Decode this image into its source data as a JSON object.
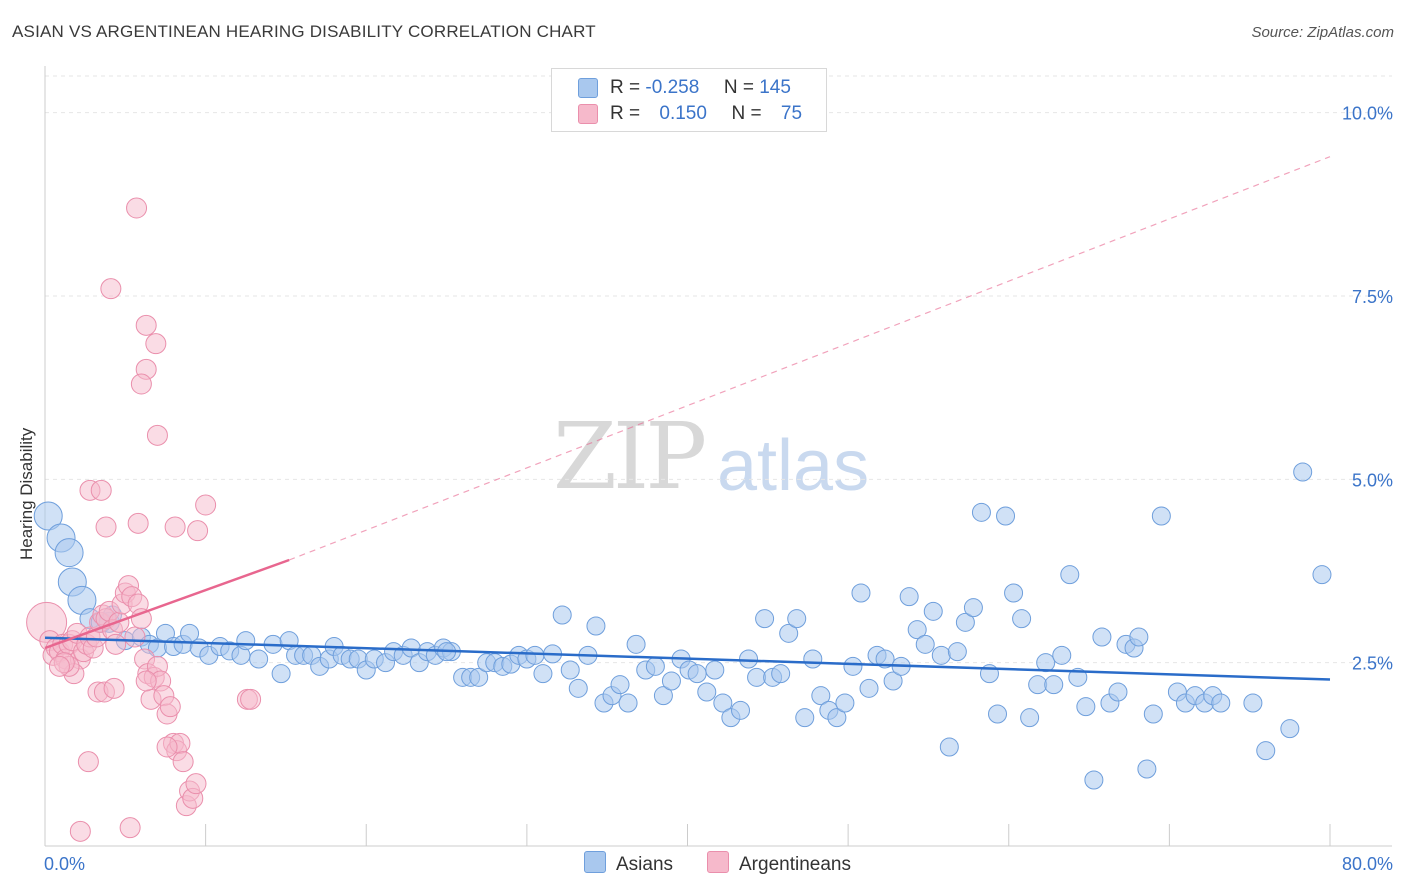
{
  "title": "ASIAN VS ARGENTINEAN HEARING DISABILITY CORRELATION CHART",
  "source": "Source: ZipAtlas.com",
  "watermark": {
    "zip": "ZIP",
    "atlas": "atlas"
  },
  "legend": {
    "rows": [
      {
        "r_label": "R =",
        "r_value": "-0.258",
        "n_label": "N =",
        "n_value": "145"
      },
      {
        "r_label": "R =",
        "r_value": "0.150",
        "n_label": "N =",
        "n_value": "75"
      }
    ]
  },
  "bottom_legend": [
    {
      "label": "Asians"
    },
    {
      "label": "Argentineans"
    }
  ],
  "colors": {
    "asian_fill": "#a9c8ee",
    "asian_stroke": "#6f9fdc",
    "asian_line": "#2a6cc9",
    "arg_fill": "#f6b9cb",
    "arg_stroke": "#ea8fac",
    "arg_line": "#e8668f",
    "tick_text": "#3b74c9",
    "grid": "#e6e6e6"
  },
  "chart_data": {
    "type": "scatter",
    "title": "ASIAN VS ARGENTINEAN HEARING DISABILITY CORRELATION CHART",
    "xlabel": "",
    "ylabel": "Hearing Disability",
    "xlim": [
      0,
      80
    ],
    "ylim": [
      0,
      10.5
    ],
    "x_tick_labels": [
      "0.0%",
      "80.0%"
    ],
    "y_ticks": [
      2.5,
      5.0,
      7.5,
      10.0
    ],
    "y_tick_labels": [
      "2.5%",
      "5.0%",
      "7.5%",
      "10.0%"
    ],
    "grid": true,
    "legend_position": "top-center",
    "series": [
      {
        "name": "Asians",
        "r": -0.258,
        "n": 145,
        "trend": {
          "x": [
            0,
            80
          ],
          "y": [
            2.84,
            2.27
          ],
          "style": "solid"
        },
        "points": [
          [
            0.2,
            4.5,
            4
          ],
          [
            1.0,
            4.2,
            4
          ],
          [
            1.5,
            4.0,
            4
          ],
          [
            1.7,
            3.6,
            4
          ],
          [
            2.3,
            3.35,
            4
          ],
          [
            2.8,
            3.1,
            3
          ],
          [
            3.5,
            3.05,
            3
          ],
          [
            4.0,
            3.05,
            3
          ],
          [
            4.2,
            3.15,
            2
          ],
          [
            5.0,
            2.8,
            2
          ],
          [
            6.0,
            2.85,
            2
          ],
          [
            6.5,
            2.75,
            2
          ],
          [
            7.0,
            2.7,
            2
          ],
          [
            7.5,
            2.9,
            2
          ],
          [
            8.0,
            2.72,
            2
          ],
          [
            8.6,
            2.75,
            2
          ],
          [
            9.0,
            2.9,
            2
          ],
          [
            9.6,
            2.7,
            2
          ],
          [
            10.2,
            2.6,
            2
          ],
          [
            10.9,
            2.72,
            2
          ],
          [
            11.5,
            2.66,
            2
          ],
          [
            12.2,
            2.6,
            2
          ],
          [
            12.5,
            2.8,
            2
          ],
          [
            13.3,
            2.55,
            2
          ],
          [
            14.2,
            2.75,
            2
          ],
          [
            14.7,
            2.35,
            2
          ],
          [
            15.2,
            2.8,
            2
          ],
          [
            15.6,
            2.6,
            2
          ],
          [
            16.1,
            2.6,
            2
          ],
          [
            16.6,
            2.6,
            2
          ],
          [
            17.1,
            2.45,
            2
          ],
          [
            17.7,
            2.55,
            2
          ],
          [
            18.0,
            2.72,
            2
          ],
          [
            18.5,
            2.6,
            2
          ],
          [
            19.0,
            2.55,
            2
          ],
          [
            19.5,
            2.55,
            2
          ],
          [
            20.0,
            2.4,
            2
          ],
          [
            20.5,
            2.55,
            2
          ],
          [
            21.2,
            2.5,
            2
          ],
          [
            21.7,
            2.65,
            2
          ],
          [
            22.3,
            2.6,
            2
          ],
          [
            22.8,
            2.7,
            2
          ],
          [
            23.3,
            2.5,
            2
          ],
          [
            23.8,
            2.65,
            2
          ],
          [
            24.3,
            2.6,
            2
          ],
          [
            24.8,
            2.7,
            2
          ],
          [
            25.3,
            2.65,
            2
          ],
          [
            25.0,
            2.65,
            2
          ],
          [
            26.0,
            2.3,
            2
          ],
          [
            26.5,
            2.3,
            2
          ],
          [
            27.0,
            2.3,
            2
          ],
          [
            27.5,
            2.5,
            2
          ],
          [
            28.0,
            2.5,
            2
          ],
          [
            28.5,
            2.45,
            2
          ],
          [
            29.0,
            2.48,
            2
          ],
          [
            29.5,
            2.6,
            2
          ],
          [
            30.0,
            2.55,
            2
          ],
          [
            30.5,
            2.6,
            2
          ],
          [
            31.0,
            2.35,
            2
          ],
          [
            31.6,
            2.62,
            2
          ],
          [
            32.2,
            3.15,
            2
          ],
          [
            32.7,
            2.4,
            2
          ],
          [
            33.2,
            2.15,
            2
          ],
          [
            33.8,
            2.6,
            2
          ],
          [
            34.3,
            3.0,
            2
          ],
          [
            34.8,
            1.95,
            2
          ],
          [
            35.3,
            2.05,
            2
          ],
          [
            35.8,
            2.2,
            2
          ],
          [
            36.3,
            1.95,
            2
          ],
          [
            36.8,
            2.75,
            2
          ],
          [
            37.4,
            2.4,
            2
          ],
          [
            38.0,
            2.45,
            2
          ],
          [
            38.5,
            2.05,
            2
          ],
          [
            39.0,
            2.25,
            2
          ],
          [
            39.6,
            2.55,
            2
          ],
          [
            40.1,
            2.4,
            2
          ],
          [
            40.6,
            2.35,
            2
          ],
          [
            41.2,
            2.1,
            2
          ],
          [
            41.7,
            2.4,
            2
          ],
          [
            42.2,
            1.95,
            2
          ],
          [
            42.7,
            1.75,
            2
          ],
          [
            43.3,
            1.85,
            2
          ],
          [
            43.8,
            2.55,
            2
          ],
          [
            44.3,
            2.3,
            2
          ],
          [
            44.8,
            3.1,
            2
          ],
          [
            45.3,
            2.3,
            2
          ],
          [
            45.8,
            2.35,
            2
          ],
          [
            46.3,
            2.9,
            2
          ],
          [
            46.8,
            3.1,
            2
          ],
          [
            47.3,
            1.75,
            2
          ],
          [
            47.8,
            2.55,
            2
          ],
          [
            48.3,
            2.05,
            2
          ],
          [
            48.8,
            1.85,
            2
          ],
          [
            49.3,
            1.75,
            2
          ],
          [
            49.8,
            1.95,
            2
          ],
          [
            50.3,
            2.45,
            2
          ],
          [
            50.8,
            3.45,
            2
          ],
          [
            51.3,
            2.15,
            2
          ],
          [
            51.8,
            2.6,
            2
          ],
          [
            52.3,
            2.55,
            2
          ],
          [
            52.8,
            2.25,
            2
          ],
          [
            53.3,
            2.45,
            2
          ],
          [
            53.8,
            3.4,
            2
          ],
          [
            54.3,
            2.95,
            2
          ],
          [
            54.8,
            2.75,
            2
          ],
          [
            55.3,
            3.2,
            2
          ],
          [
            55.8,
            2.6,
            2
          ],
          [
            56.3,
            1.35,
            2
          ],
          [
            56.8,
            2.65,
            2
          ],
          [
            57.3,
            3.05,
            2
          ],
          [
            57.8,
            3.25,
            2
          ],
          [
            58.3,
            4.55,
            2
          ],
          [
            58.8,
            2.35,
            2
          ],
          [
            59.3,
            1.8,
            2
          ],
          [
            59.8,
            4.5,
            2
          ],
          [
            60.3,
            3.45,
            2
          ],
          [
            60.8,
            3.1,
            2
          ],
          [
            61.3,
            1.75,
            2
          ],
          [
            61.8,
            2.2,
            2
          ],
          [
            62.3,
            2.5,
            2
          ],
          [
            62.8,
            2.2,
            2
          ],
          [
            63.3,
            2.6,
            2
          ],
          [
            63.8,
            3.7,
            2
          ],
          [
            64.3,
            2.3,
            2
          ],
          [
            64.8,
            1.9,
            2
          ],
          [
            65.3,
            0.9,
            2
          ],
          [
            65.8,
            2.85,
            2
          ],
          [
            66.3,
            1.95,
            2
          ],
          [
            66.8,
            2.1,
            2
          ],
          [
            67.3,
            2.75,
            2
          ],
          [
            67.8,
            2.7,
            2
          ],
          [
            68.1,
            2.85,
            2
          ],
          [
            68.6,
            1.05,
            2
          ],
          [
            69.0,
            1.8,
            2
          ],
          [
            69.5,
            4.5,
            2
          ],
          [
            70.5,
            2.1,
            2
          ],
          [
            71.0,
            1.95,
            2
          ],
          [
            71.6,
            2.05,
            2
          ],
          [
            72.2,
            1.95,
            2
          ],
          [
            72.7,
            2.05,
            2
          ],
          [
            73.2,
            1.95,
            2
          ],
          [
            75.2,
            1.95,
            2
          ],
          [
            76.0,
            1.3,
            2
          ],
          [
            77.5,
            1.6,
            2
          ],
          [
            78.3,
            5.1,
            2
          ],
          [
            79.5,
            3.7,
            2
          ]
        ]
      },
      {
        "name": "Argentineans",
        "r": 0.15,
        "n": 75,
        "trend": {
          "x": [
            0,
            15.2
          ],
          "y": [
            2.7,
            3.9
          ],
          "style": "solid",
          "extension": {
            "x": [
              15.2,
              80
            ],
            "y": [
              3.9,
              9.4
            ],
            "style": "dashed"
          }
        },
        "points": [
          [
            0.1,
            3.05,
            5
          ],
          [
            0.3,
            2.8,
            3
          ],
          [
            0.5,
            2.6,
            3
          ],
          [
            0.7,
            2.7,
            3
          ],
          [
            0.9,
            2.65,
            3
          ],
          [
            1.1,
            2.75,
            3
          ],
          [
            1.3,
            2.55,
            3
          ],
          [
            1.5,
            2.75,
            3
          ],
          [
            1.7,
            2.8,
            3
          ],
          [
            2.0,
            2.9,
            3
          ],
          [
            2.2,
            2.55,
            3
          ],
          [
            2.4,
            2.65,
            3
          ],
          [
            2.6,
            2.75,
            3
          ],
          [
            2.8,
            2.85,
            3
          ],
          [
            3.0,
            2.7,
            3
          ],
          [
            3.2,
            2.85,
            3
          ],
          [
            3.4,
            3.05,
            3
          ],
          [
            3.6,
            3.15,
            3
          ],
          [
            3.8,
            3.1,
            3
          ],
          [
            4.0,
            3.2,
            3
          ],
          [
            4.2,
            2.95,
            3
          ],
          [
            4.4,
            2.75,
            3
          ],
          [
            4.6,
            3.05,
            3
          ],
          [
            4.8,
            3.3,
            3
          ],
          [
            5.0,
            3.45,
            3
          ],
          [
            5.2,
            3.55,
            3
          ],
          [
            5.4,
            3.4,
            3
          ],
          [
            5.6,
            2.85,
            3
          ],
          [
            5.8,
            3.3,
            3
          ],
          [
            6.0,
            3.1,
            3
          ],
          [
            6.2,
            2.55,
            3
          ],
          [
            6.4,
            2.35,
            3
          ],
          [
            6.6,
            2.0,
            3
          ],
          [
            6.8,
            2.3,
            3
          ],
          [
            7.0,
            2.45,
            3
          ],
          [
            7.2,
            2.25,
            3
          ],
          [
            7.4,
            2.05,
            3
          ],
          [
            7.6,
            1.8,
            3
          ],
          [
            7.8,
            1.9,
            3
          ],
          [
            8.0,
            1.4,
            3
          ],
          [
            8.2,
            1.3,
            3
          ],
          [
            8.4,
            1.4,
            3
          ],
          [
            8.6,
            1.15,
            3
          ],
          [
            8.8,
            0.55,
            3
          ],
          [
            9.0,
            0.75,
            3
          ],
          [
            9.2,
            0.65,
            3
          ],
          [
            9.4,
            0.85,
            3
          ],
          [
            2.8,
            4.85,
            3
          ],
          [
            3.5,
            4.85,
            3
          ],
          [
            3.8,
            4.35,
            3
          ],
          [
            5.8,
            4.4,
            3
          ],
          [
            8.1,
            4.35,
            3
          ],
          [
            9.5,
            4.3,
            3
          ],
          [
            10.0,
            4.65,
            3
          ],
          [
            7.0,
            5.6,
            3
          ],
          [
            6.9,
            6.85,
            3
          ],
          [
            6.3,
            7.1,
            3
          ],
          [
            6.3,
            6.5,
            3
          ],
          [
            6.0,
            6.3,
            3
          ],
          [
            4.1,
            7.6,
            3
          ],
          [
            5.7,
            8.7,
            3
          ],
          [
            12.6,
            2.0,
            3
          ],
          [
            12.8,
            2.0,
            3
          ],
          [
            6.3,
            2.25,
            3
          ],
          [
            2.2,
            0.2,
            3
          ],
          [
            2.7,
            1.15,
            3
          ],
          [
            3.3,
            2.1,
            3
          ],
          [
            3.7,
            2.1,
            3
          ],
          [
            4.3,
            2.15,
            3
          ],
          [
            5.3,
            0.25,
            3
          ],
          [
            7.6,
            1.35,
            3
          ],
          [
            1.8,
            2.35,
            3
          ],
          [
            1.5,
            2.45,
            3
          ],
          [
            1.2,
            2.5,
            3
          ],
          [
            0.9,
            2.45,
            3
          ]
        ]
      }
    ]
  }
}
